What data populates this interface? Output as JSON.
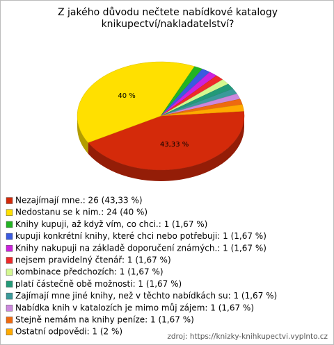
{
  "chart_data": {
    "type": "pie",
    "title": "Z jakého důvodu nečtete nabídkové katalogy knikupectví/nakladatelství?",
    "categories": [
      "Nezajímají mne.: 26 (43,33 %)",
      "Nedostanu se k nim.: 24 (40 %)",
      "Knihy kupuji, až když vím, co chci.: 1 (1,67 %)",
      "kupuji konkrétní knihy, které chci nebo potřebuji: 1 (1,67 %)",
      "Knihy nakupuji na základě doporučení známých.: 1 (1,67 %)",
      "nejsem pravidelný čtenář: 1 (1,67 %)",
      "kombinace předchozích: 1 (1,67 %)",
      "platí částečně obě možnosti: 1 (1,67 %)",
      "Zajímají mne jiné knihy, než v těchto nabídkách su: 1 (1,67 %)",
      "Nabídka knih v katalozích je mimo můj zájem: 1 (1,67 %)",
      "Stejně nemám na knihy peníze: 1 (1,67 %)",
      "Ostatní odpovědi: 1 (2 %)"
    ],
    "values": [
      43.33,
      40,
      1.67,
      1.67,
      1.67,
      1.67,
      1.67,
      1.67,
      1.67,
      1.67,
      1.67,
      2
    ],
    "value_labels": [
      "43,33 %",
      "40 %",
      null,
      null,
      null,
      null,
      null,
      null,
      null,
      null,
      null,
      null
    ],
    "colors": [
      "#d42a0a",
      "#ffe000",
      "#22b422",
      "#3a5ae0",
      "#cc22dd",
      "#ee2a2a",
      "#d4f890",
      "#229a78",
      "#3a9a9a",
      "#cc88dd",
      "#ee6a10",
      "#ffaa00"
    ],
    "source": "zdroj: https://knizky-knihkupectvi.vyplnto.cz"
  }
}
